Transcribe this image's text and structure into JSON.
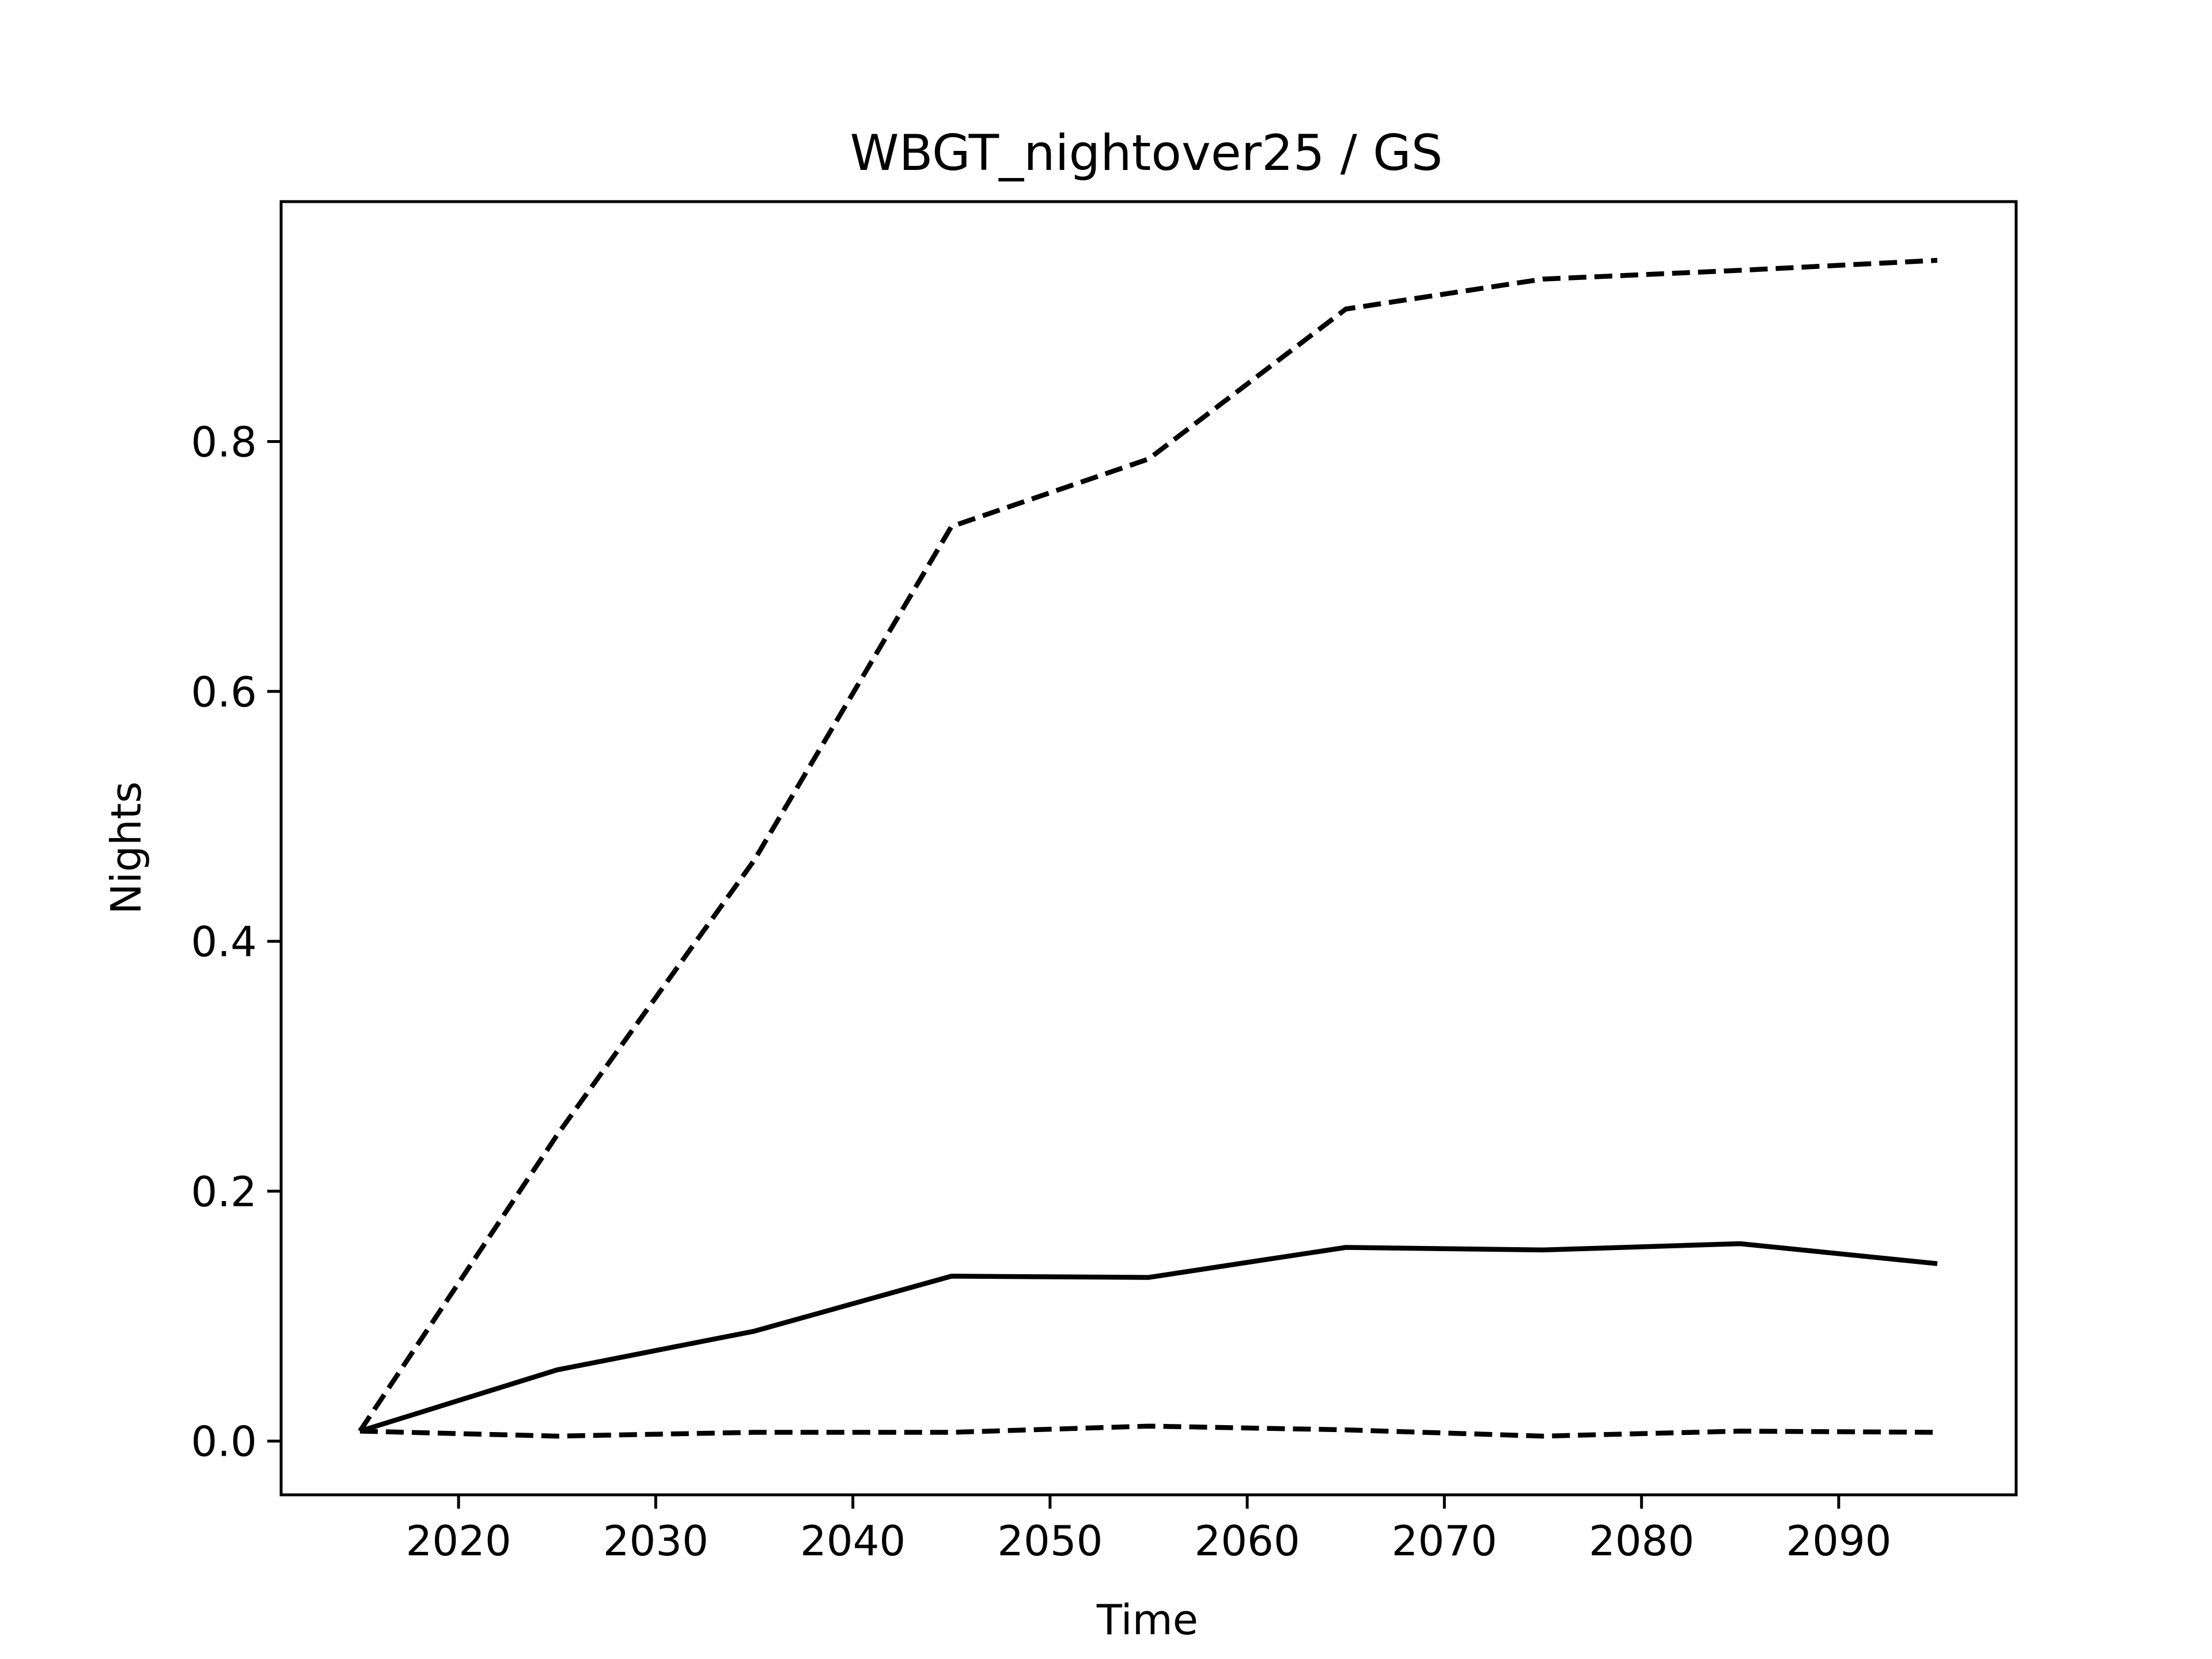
{
  "chart_data": {
    "type": "line",
    "title": "WBGT_nightover25 / GS",
    "xlabel": "Time",
    "ylabel": "Nights",
    "xlim": [
      2011,
      2099
    ],
    "ylim": [
      -0.043,
      0.992
    ],
    "xticks": [
      2020,
      2030,
      2040,
      2050,
      2060,
      2070,
      2080,
      2090
    ],
    "yticks": [
      0.0,
      0.2,
      0.4,
      0.6,
      0.8
    ],
    "ytick_labels": [
      "0.0",
      "0.2",
      "0.4",
      "0.6",
      "0.8"
    ],
    "grid": false,
    "colors": {
      "line": "#000000",
      "frame": "#000000",
      "background": "#ffffff"
    },
    "x": [
      2015,
      2025,
      2035,
      2045,
      2055,
      2065,
      2075,
      2085,
      2095
    ],
    "series": [
      {
        "style": "dashed",
        "values": [
          0.008,
          0.245,
          0.465,
          0.732,
          0.786,
          0.906,
          0.93,
          0.937,
          0.945
        ]
      },
      {
        "style": "solid",
        "values": [
          0.008,
          0.057,
          0.088,
          0.132,
          0.131,
          0.155,
          0.153,
          0.158,
          0.142
        ]
      },
      {
        "style": "dashed",
        "values": [
          0.008,
          0.004,
          0.007,
          0.007,
          0.012,
          0.009,
          0.004,
          0.008,
          0.007
        ]
      }
    ]
  }
}
